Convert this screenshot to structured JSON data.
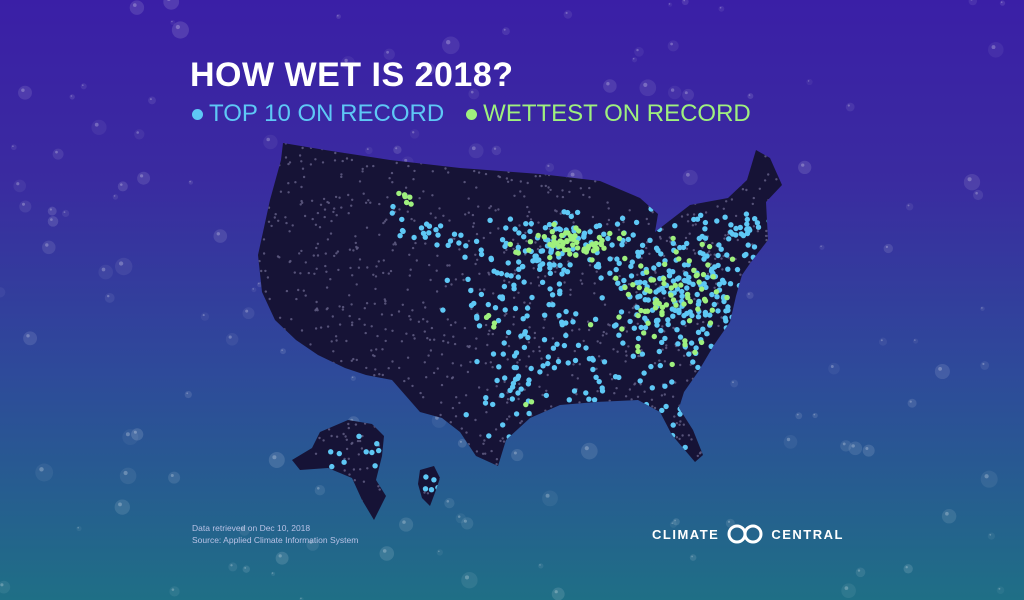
{
  "title": "HOW WET IS 2018?",
  "legend": [
    {
      "label": "TOP 10 ON RECORD",
      "color": "#5ec8f5"
    },
    {
      "label": "WETTEST ON RECORD",
      "color": "#9ff07e"
    }
  ],
  "footer": {
    "line1": "Data retrieved on Dec 10, 2018",
    "line2": "Source: Applied Climate Information System"
  },
  "brand": {
    "left_word": "CLIMATE",
    "right_word": "CENTRAL",
    "logo_icon": "infinity-loop-icon"
  },
  "colors": {
    "top10": "#5ec8f5",
    "wettest": "#9ff07e",
    "map_fill": "#161336",
    "station_grey": "#5d5a80"
  }
}
